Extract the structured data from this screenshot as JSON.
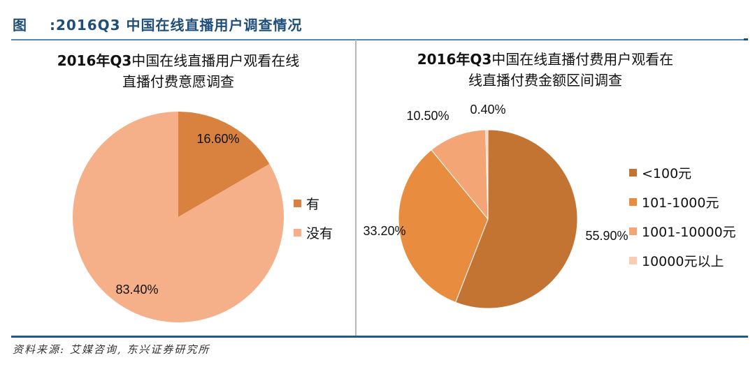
{
  "figure": {
    "prefix": "图",
    "title": ":2016Q3 中国在线直播用户调查情况",
    "source": "资料来源: 艾媒咨询, 东兴证券研究所"
  },
  "chart_data": [
    {
      "type": "pie",
      "title_bold": "2016年Q3",
      "title_line1": "中国在线直播用户观看在线",
      "title_line2": "直播付费意愿调查",
      "categories": [
        "有",
        "没有"
      ],
      "values": [
        16.6,
        83.4
      ],
      "labels": [
        "16.60%",
        "83.40%"
      ],
      "colors": [
        "#D9823F",
        "#F5B08A"
      ],
      "legend_position": "right"
    },
    {
      "type": "pie",
      "title_bold": "2016年Q3",
      "title_line1": "中国在线直播付费用户观看在",
      "title_line2": "线直播付费金额区间调查",
      "categories": [
        "<100元",
        "101-1000元",
        "1001-10000元",
        "10000元以上"
      ],
      "values": [
        55.9,
        33.2,
        10.5,
        0.4
      ],
      "labels": [
        "55.90%",
        "33.20%",
        "10.50%",
        "0.40%"
      ],
      "colors": [
        "#C47432",
        "#E88C40",
        "#F3A576",
        "#F8CDB2"
      ],
      "legend_position": "right"
    }
  ]
}
